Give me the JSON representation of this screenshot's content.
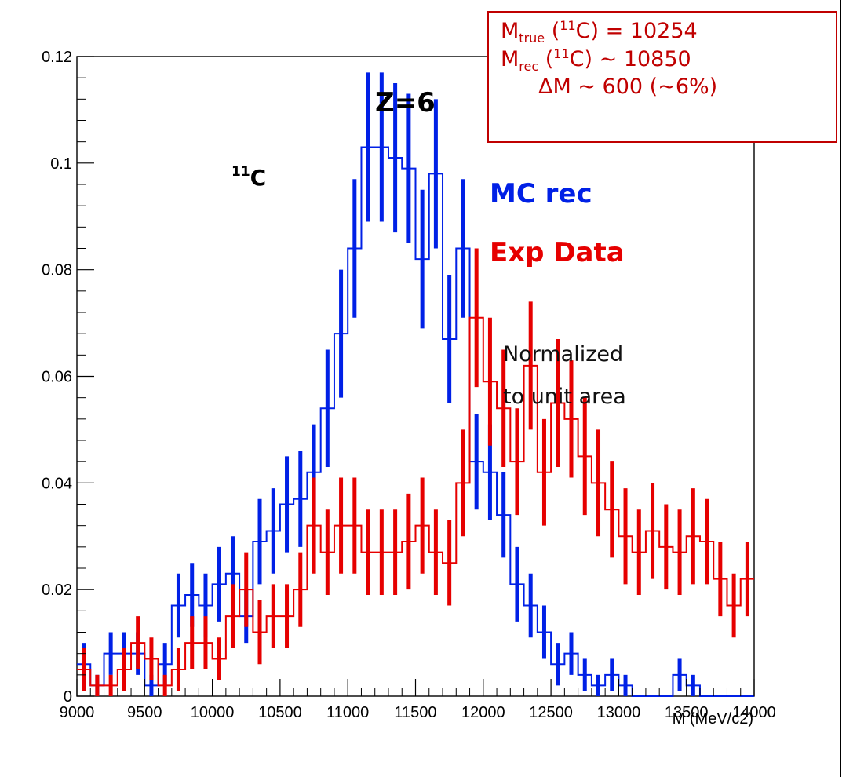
{
  "chart_data": {
    "type": "histogram",
    "xlabel": "M (MeV/c2)",
    "ylabel": "",
    "xlim": [
      9000,
      14000
    ],
    "ylim": [
      0,
      0.12
    ],
    "x_ticks": [
      "9000",
      "9500",
      "10000",
      "10500",
      "11000",
      "11500",
      "12000",
      "12500",
      "13000",
      "13500",
      "14000"
    ],
    "y_ticks": [
      "0",
      "0.02",
      "0.04",
      "0.06",
      "0.08",
      "0.1",
      "0.12"
    ],
    "bin_width": 100,
    "series": [
      {
        "name": "MC rec",
        "color": "#0020e6",
        "bins_start": 9000,
        "values": [
          0.006,
          0.002,
          0.008,
          0.008,
          0.008,
          0.002,
          0.006,
          0.017,
          0.019,
          0.017,
          0.021,
          0.023,
          0.015,
          0.029,
          0.031,
          0.036,
          0.037,
          0.042,
          0.054,
          0.068,
          0.084,
          0.103,
          0.103,
          0.101,
          0.099,
          0.082,
          0.098,
          0.067,
          0.084,
          0.044,
          0.042,
          0.034,
          0.021,
          0.017,
          0.012,
          0.006,
          0.008,
          0.004,
          0.002,
          0.004,
          0.002,
          0.0,
          0.0,
          0.0,
          0.004,
          0.002,
          0.0,
          0.0,
          0.0,
          0.0
        ],
        "errors": [
          0.004,
          0.002,
          0.004,
          0.004,
          0.004,
          0.002,
          0.004,
          0.006,
          0.006,
          0.006,
          0.007,
          0.007,
          0.005,
          0.008,
          0.008,
          0.009,
          0.009,
          0.009,
          0.011,
          0.012,
          0.013,
          0.014,
          0.014,
          0.014,
          0.014,
          0.013,
          0.014,
          0.012,
          0.013,
          0.009,
          0.009,
          0.008,
          0.007,
          0.006,
          0.005,
          0.004,
          0.004,
          0.003,
          0.002,
          0.003,
          0.002,
          0.0,
          0.0,
          0.0,
          0.003,
          0.002,
          0.0,
          0.0,
          0.0,
          0.0
        ]
      },
      {
        "name": "Exp Data",
        "color": "#e60000",
        "bins_start": 9000,
        "values": [
          0.005,
          0.002,
          0.002,
          0.005,
          0.01,
          0.007,
          0.002,
          0.005,
          0.01,
          0.01,
          0.007,
          0.015,
          0.02,
          0.012,
          0.015,
          0.015,
          0.02,
          0.032,
          0.027,
          0.032,
          0.032,
          0.027,
          0.027,
          0.027,
          0.029,
          0.032,
          0.027,
          0.025,
          0.04,
          0.071,
          0.059,
          0.054,
          0.044,
          0.062,
          0.042,
          0.055,
          0.052,
          0.045,
          0.04,
          0.035,
          0.03,
          0.027,
          0.031,
          0.028,
          0.027,
          0.03,
          0.029,
          0.022,
          0.017,
          0.022
        ],
        "errors": [
          0.004,
          0.002,
          0.002,
          0.004,
          0.005,
          0.004,
          0.002,
          0.004,
          0.005,
          0.005,
          0.004,
          0.006,
          0.007,
          0.006,
          0.006,
          0.006,
          0.007,
          0.009,
          0.008,
          0.009,
          0.009,
          0.008,
          0.008,
          0.008,
          0.009,
          0.009,
          0.008,
          0.008,
          0.01,
          0.013,
          0.012,
          0.011,
          0.01,
          0.012,
          0.01,
          0.012,
          0.011,
          0.011,
          0.01,
          0.009,
          0.009,
          0.008,
          0.009,
          0.008,
          0.008,
          0.009,
          0.008,
          0.007,
          0.006,
          0.007
        ]
      }
    ],
    "annotations": {
      "z_label": "Z=6",
      "isotope_mass_number": "11",
      "isotope_symbol": "C",
      "legend_mc": "MC rec",
      "legend_exp": "Exp Data",
      "normalized_line1": "Normalized",
      "normalized_line2": "to unit area"
    }
  },
  "mass_box": {
    "line1_sub": "true",
    "line1_iso": "11",
    "line1_text": "C) = 10254",
    "line2_sub": "rec",
    "line2_iso": "11",
    "line2_text": "C)  ~ 10850",
    "line3_text": "ΔM ~  600 (~6%)",
    "M": "M",
    "open_paren": " ("
  },
  "colors": {
    "mc": "#0020e6",
    "exp": "#e60000",
    "box": "#c00000"
  }
}
